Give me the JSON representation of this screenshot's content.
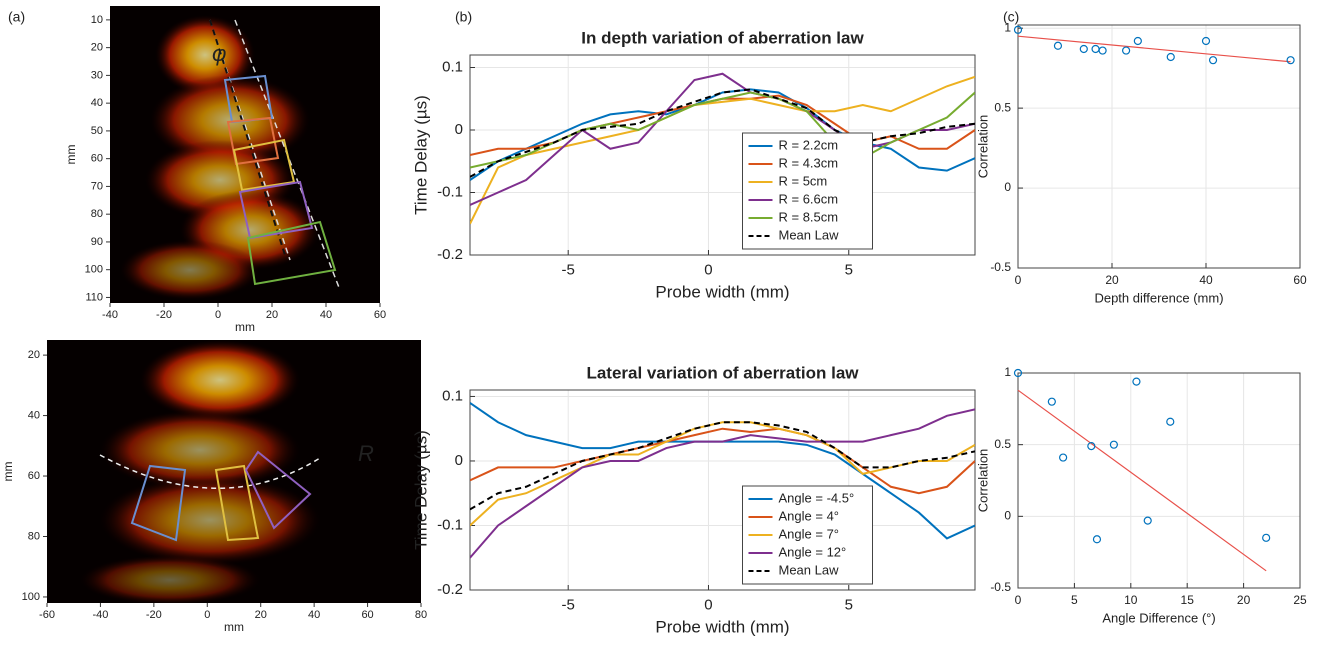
{
  "chart_data": [
    {
      "type": "image",
      "panel_label": "(a)",
      "xlabel": "mm",
      "ylabel": "mm",
      "annotation": "φ",
      "xlim": [
        -40,
        60
      ],
      "xticks": [
        -40,
        -20,
        0,
        20,
        40,
        60
      ],
      "ylim": [
        5,
        112
      ],
      "yticks": [
        10,
        20,
        30,
        40,
        50,
        60,
        70,
        80,
        90,
        100,
        110
      ]
    },
    {
      "type": "image",
      "xlabel": "mm",
      "ylabel": "mm",
      "annotation": "R",
      "xlim": [
        -60,
        80
      ],
      "xticks": [
        -60,
        -40,
        -20,
        0,
        20,
        40,
        60,
        80
      ],
      "ylim": [
        15,
        102
      ],
      "yticks": [
        20,
        40,
        60,
        80,
        100
      ]
    },
    {
      "type": "line",
      "panel_label": "(b)",
      "title": "In depth variation of aberration law",
      "xlabel": "Probe width (mm)",
      "ylabel": "Time Delay (µs)",
      "grid": true,
      "legend": "lower center",
      "xlim": [
        -8.5,
        9.5
      ],
      "xticks": [
        -5,
        0,
        5
      ],
      "ylim": [
        -0.2,
        0.12
      ],
      "yticks": [
        -0.2,
        -0.1,
        0,
        0.1
      ],
      "x": [
        -8.5,
        -7.5,
        -6.5,
        -5.5,
        -4.5,
        -3.5,
        -2.5,
        -1.5,
        -0.5,
        0.5,
        1.5,
        2.5,
        3.5,
        4.5,
        5.5,
        6.5,
        7.5,
        8.5,
        9.5
      ],
      "series": [
        {
          "name": "R = 2.2cm",
          "color": "#0072bd",
          "values": [
            -0.08,
            -0.05,
            -0.03,
            -0.01,
            0.01,
            0.025,
            0.03,
            0.025,
            0.04,
            0.06,
            0.065,
            0.06,
            0.035,
            0.0,
            -0.02,
            -0.03,
            -0.06,
            -0.065,
            -0.045
          ]
        },
        {
          "name": "R = 4.3cm",
          "color": "#d95319",
          "values": [
            -0.04,
            -0.03,
            -0.03,
            -0.02,
            0.0,
            0.01,
            0.02,
            0.03,
            0.04,
            0.05,
            0.05,
            0.055,
            0.04,
            0.01,
            -0.02,
            -0.01,
            -0.03,
            -0.03,
            0.0
          ]
        },
        {
          "name": "R = 5cm",
          "color": "#edb120",
          "values": [
            -0.15,
            -0.06,
            -0.04,
            -0.03,
            -0.02,
            -0.01,
            0.0,
            0.02,
            0.04,
            0.045,
            0.05,
            0.04,
            0.03,
            0.03,
            0.04,
            0.03,
            0.05,
            0.07,
            0.085
          ]
        },
        {
          "name": "R = 6.6cm",
          "color": "#7e2f8e",
          "values": [
            -0.12,
            -0.1,
            -0.08,
            -0.04,
            0.0,
            -0.03,
            -0.02,
            0.03,
            0.08,
            0.09,
            0.06,
            0.05,
            0.03,
            0.0,
            -0.03,
            -0.02,
            0.0,
            0.0,
            0.01
          ]
        },
        {
          "name": "R = 8.5cm",
          "color": "#77ac30",
          "values": [
            -0.06,
            -0.05,
            -0.04,
            -0.02,
            0.0,
            0.01,
            0.0,
            0.02,
            0.04,
            0.05,
            0.06,
            0.05,
            0.03,
            -0.02,
            -0.045,
            -0.02,
            0.0,
            0.02,
            0.06
          ]
        },
        {
          "name": "Mean Law",
          "color": "#000000",
          "dashed": true,
          "values": [
            -0.075,
            -0.05,
            -0.035,
            -0.02,
            0.0,
            0.005,
            0.01,
            0.03,
            0.045,
            0.06,
            0.065,
            0.05,
            0.035,
            0.0,
            -0.02,
            -0.01,
            -0.005,
            0.005,
            0.01
          ]
        }
      ]
    },
    {
      "type": "line",
      "title": "Lateral variation of aberration law",
      "xlabel": "Probe width (mm)",
      "ylabel": "Time Delay (µs)",
      "grid": true,
      "legend": "lower center",
      "xlim": [
        -8.5,
        9.5
      ],
      "xticks": [
        -5,
        0,
        5
      ],
      "ylim": [
        -0.2,
        0.11
      ],
      "yticks": [
        -0.2,
        -0.1,
        0,
        0.1
      ],
      "x": [
        -8.5,
        -7.5,
        -6.5,
        -5.5,
        -4.5,
        -3.5,
        -2.5,
        -1.5,
        -0.5,
        0.5,
        1.5,
        2.5,
        3.5,
        4.5,
        5.5,
        6.5,
        7.5,
        8.5,
        9.5
      ],
      "series": [
        {
          "name": "Angle = -4.5°",
          "color": "#0072bd",
          "values": [
            0.09,
            0.06,
            0.04,
            0.03,
            0.02,
            0.02,
            0.03,
            0.03,
            0.03,
            0.03,
            0.03,
            0.03,
            0.025,
            0.01,
            -0.02,
            -0.05,
            -0.08,
            -0.12,
            -0.1
          ]
        },
        {
          "name": "Angle = 4°",
          "color": "#d95319",
          "values": [
            -0.03,
            -0.01,
            -0.01,
            -0.01,
            0.0,
            0.01,
            0.02,
            0.03,
            0.04,
            0.05,
            0.045,
            0.05,
            0.04,
            0.02,
            -0.01,
            -0.04,
            -0.05,
            -0.04,
            0.0
          ]
        },
        {
          "name": "Angle = 7°",
          "color": "#edb120",
          "values": [
            -0.1,
            -0.06,
            -0.05,
            -0.03,
            -0.01,
            0.01,
            0.01,
            0.03,
            0.05,
            0.06,
            0.06,
            0.05,
            0.04,
            0.02,
            -0.02,
            -0.01,
            0.0,
            0.0,
            0.025
          ]
        },
        {
          "name": "Angle = 12°",
          "color": "#7e2f8e",
          "values": [
            -0.15,
            -0.1,
            -0.07,
            -0.04,
            -0.01,
            0.0,
            0.0,
            0.02,
            0.03,
            0.03,
            0.04,
            0.035,
            0.03,
            0.03,
            0.03,
            0.04,
            0.05,
            0.07,
            0.08
          ]
        },
        {
          "name": "Mean Law",
          "color": "#000000",
          "dashed": true,
          "values": [
            -0.075,
            -0.05,
            -0.04,
            -0.02,
            0.0,
            0.01,
            0.02,
            0.035,
            0.05,
            0.06,
            0.06,
            0.055,
            0.045,
            0.02,
            -0.01,
            -0.01,
            0.0,
            0.005,
            0.015
          ]
        }
      ]
    },
    {
      "type": "scatter",
      "panel_label": "(c)",
      "xlabel": "Depth difference (mm)",
      "ylabel": "Correlation",
      "grid": true,
      "xlim": [
        0,
        60
      ],
      "xticks": [
        0,
        20,
        40,
        60
      ],
      "ylim": [
        -0.5,
        1.02
      ],
      "yticks": [
        -0.5,
        0,
        0.5,
        1
      ],
      "points": {
        "color": "#0072bd",
        "x": [
          0,
          8.5,
          14,
          16.5,
          18,
          23,
          25.5,
          32.5,
          40,
          41.5,
          58
        ],
        "values": [
          0.99,
          0.89,
          0.87,
          0.87,
          0.86,
          0.86,
          0.92,
          0.82,
          0.92,
          0.8,
          0.8
        ]
      },
      "fit": {
        "color": "#e8504a",
        "x": [
          0,
          58
        ],
        "values": [
          0.95,
          0.79
        ]
      }
    },
    {
      "type": "scatter",
      "xlabel": "Angle Difference (°)",
      "ylabel": "Correlation",
      "grid": true,
      "xlim": [
        0,
        25
      ],
      "xticks": [
        0,
        5,
        10,
        15,
        20,
        25
      ],
      "ylim": [
        -0.5,
        1
      ],
      "yticks": [
        -0.5,
        0,
        0.5,
        1
      ],
      "points": {
        "color": "#0072bd",
        "x": [
          0,
          3,
          4,
          6.5,
          7,
          8.5,
          10.5,
          11.5,
          13.5,
          22
        ],
        "values": [
          1,
          0.8,
          0.41,
          0.49,
          -0.16,
          0.5,
          0.94,
          -0.03,
          0.66,
          -0.15
        ]
      },
      "fit": {
        "color": "#e8504a",
        "x": [
          0,
          22
        ],
        "values": [
          0.88,
          -0.38
        ]
      }
    }
  ]
}
